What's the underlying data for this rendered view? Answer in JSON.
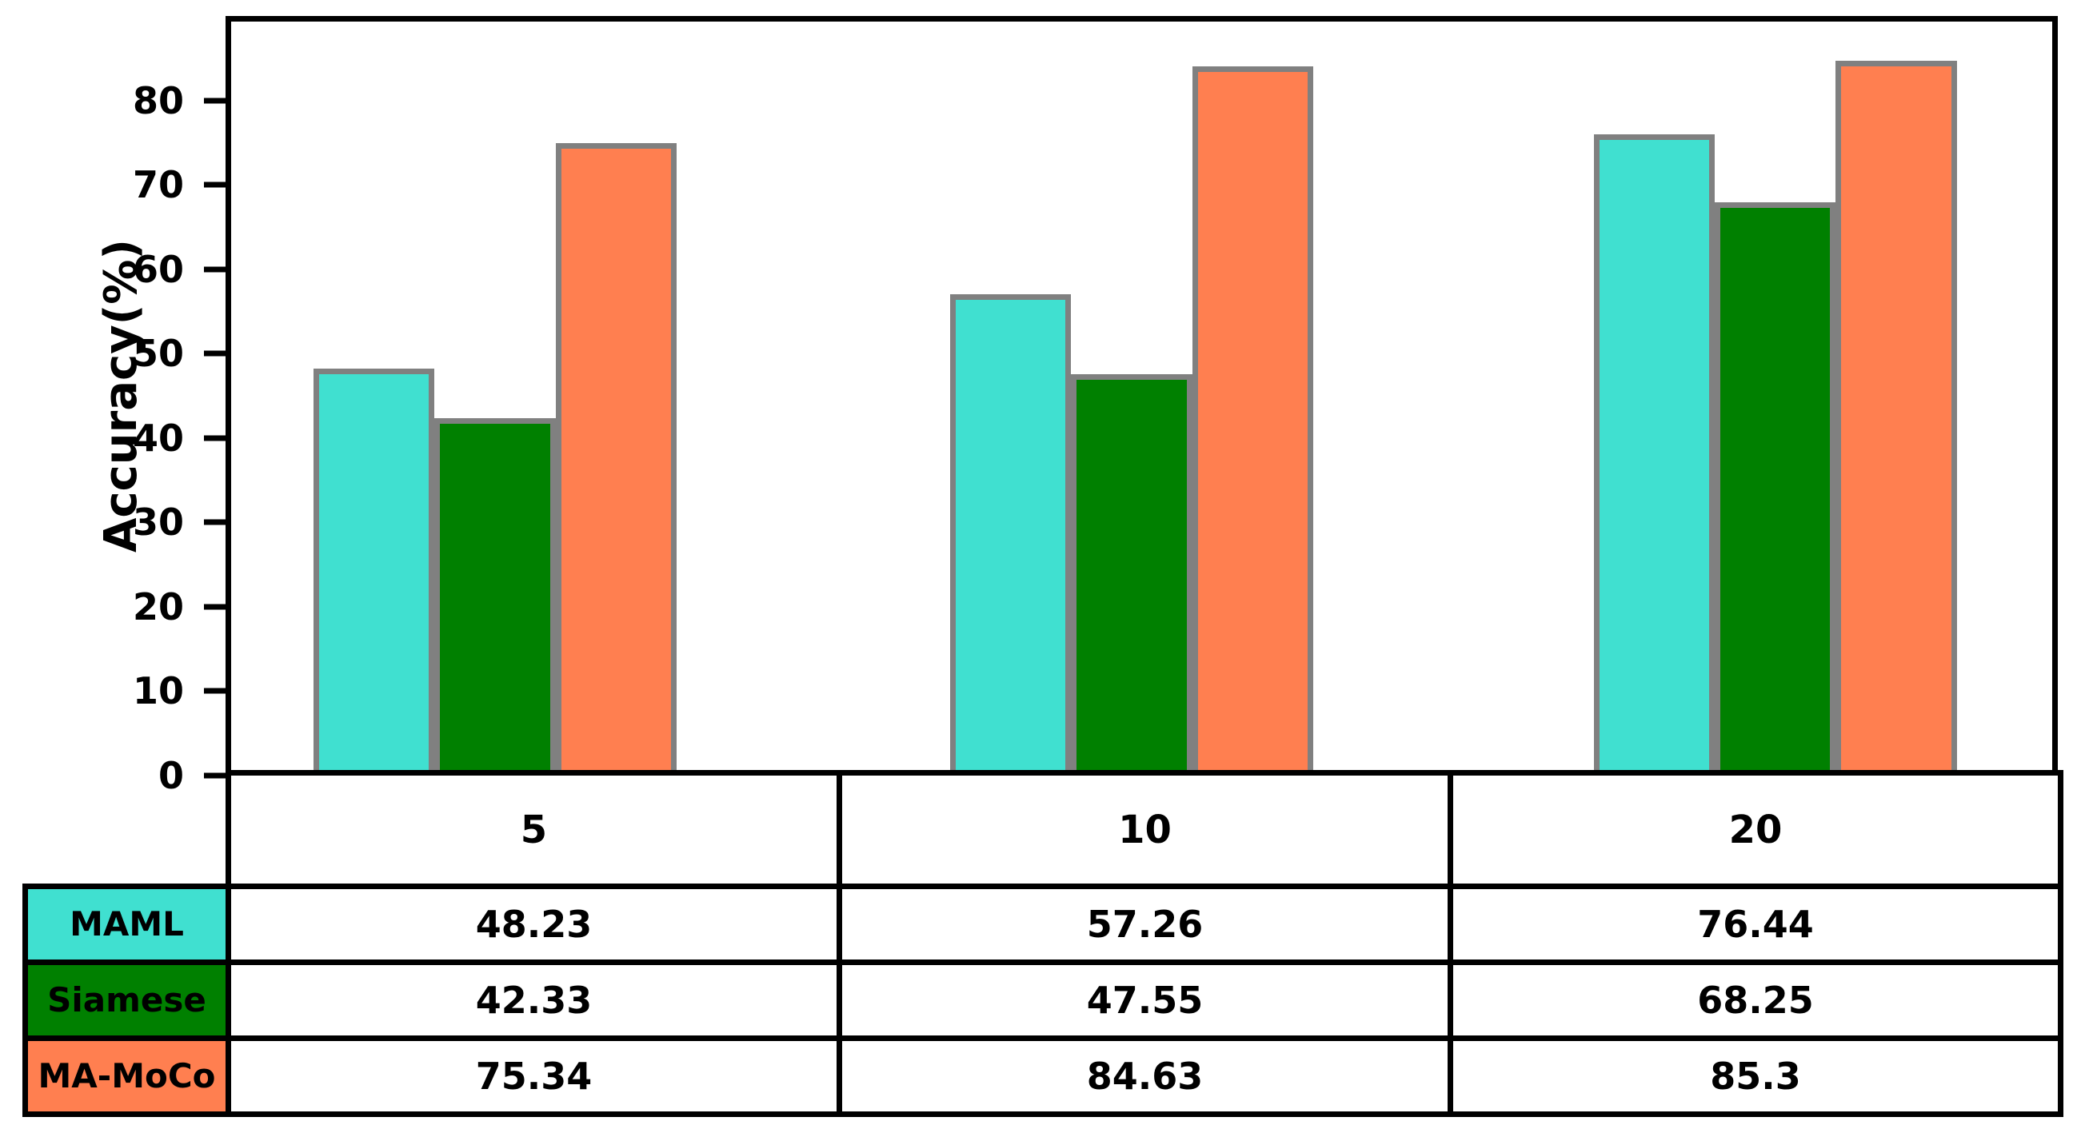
{
  "chart_data": {
    "type": "bar",
    "title": "",
    "xlabel": "",
    "ylabel": "Accuracy(%)",
    "ylim": [
      0,
      90
    ],
    "yticks": [
      0,
      10,
      20,
      30,
      40,
      50,
      60,
      70,
      80
    ],
    "grid": false,
    "legend_position": "table-row-labels",
    "categories": [
      "5",
      "10",
      "20"
    ],
    "series": [
      {
        "name": "MAML",
        "color": "#40E0D0",
        "values": [
          48.23,
          57.26,
          76.44
        ]
      },
      {
        "name": "Siamese",
        "color": "#008000",
        "values": [
          42.33,
          47.55,
          68.25
        ]
      },
      {
        "name": "MA-MoCo",
        "color": "#FF7F50",
        "values": [
          75.34,
          84.63,
          85.3
        ]
      }
    ],
    "bar_edge_color": "#808080",
    "axis_color": "#000000"
  },
  "table": {
    "column_headers": [
      "5",
      "10",
      "20"
    ],
    "rows": [
      {
        "label": "MAML",
        "color": "#40E0D0",
        "values": [
          "48.23",
          "57.26",
          "76.44"
        ]
      },
      {
        "label": "Siamese",
        "color": "#008000",
        "values": [
          "42.33",
          "47.55",
          "68.25"
        ]
      },
      {
        "label": "MA-MoCo",
        "color": "#FF7F50",
        "values": [
          "75.34",
          "84.63",
          "85.3"
        ]
      }
    ]
  }
}
